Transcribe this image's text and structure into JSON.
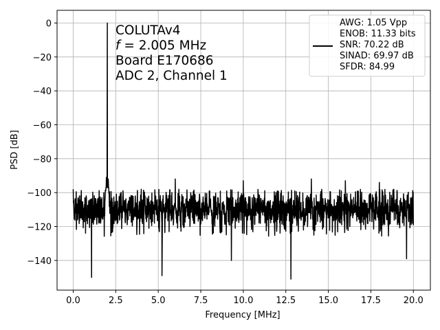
{
  "chart_data": {
    "type": "line",
    "xlabel": "Frequency [MHz]",
    "ylabel": "PSD [dB]",
    "xlim": [
      -0.95,
      21.0
    ],
    "ylim": [
      -157.5,
      7.5
    ],
    "xticks": [
      0.0,
      2.5,
      5.0,
      7.5,
      10.0,
      12.5,
      15.0,
      17.5,
      20.0
    ],
    "xtick_labels": [
      "0.0",
      "2.5",
      "5.0",
      "7.5",
      "10.0",
      "12.5",
      "15.0",
      "17.5",
      "20.0"
    ],
    "yticks": [
      0,
      -20,
      -40,
      -60,
      -80,
      -100,
      -120,
      -140
    ],
    "ytick_labels": [
      "0",
      "−20",
      "−40",
      "−60",
      "−80",
      "−100",
      "−120",
      "−140"
    ],
    "grid": true,
    "line_color": "#000000",
    "legend_placement": "upper right",
    "legend_lines": [
      "AWG: 1.05 Vpp",
      "ENOB: 11.33 bits",
      "SNR: 70.22 dB",
      "SINAD: 69.97 dB",
      "SFDR: 84.99"
    ],
    "annotations": {
      "line1": "COLUTAv4",
      "line2_italic": "f",
      "line2_rest": " = 2.005 MHz",
      "line3": "Board E170686",
      "line4": "ADC 2, Channel 1"
    },
    "noise_floor": {
      "x_range": [
        0.0,
        20.0
      ],
      "median": -110,
      "low": -120,
      "high": -100
    },
    "series": [
      {
        "values": [
          [
            2.005,
            0
          ],
          [
            1.95,
            -91
          ],
          [
            2.06,
            -92
          ],
          [
            0.0,
            -98
          ],
          [
            1.08,
            -150
          ],
          [
            5.22,
            -149
          ],
          [
            12.8,
            -151
          ],
          [
            9.3,
            -140
          ],
          [
            19.6,
            -139
          ],
          [
            6.0,
            -92
          ],
          [
            10.0,
            -93
          ],
          [
            14.0,
            -92
          ],
          [
            16.0,
            -93
          ],
          [
            18.0,
            -94
          ],
          [
            4.0,
            -98
          ],
          [
            8.0,
            -99
          ],
          [
            12.0,
            -99
          ]
        ]
      }
    ]
  }
}
